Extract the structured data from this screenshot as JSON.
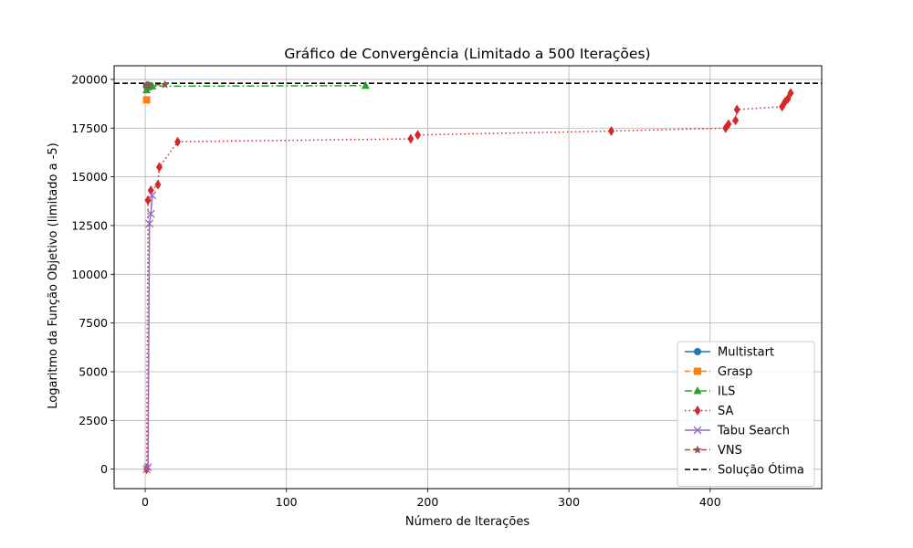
{
  "chart_data": {
    "type": "line",
    "title": "Gráfico de Convergência (Limitado a 500 Iterações)",
    "xlabel": "Número de Iterações",
    "ylabel": "Logaritmo da Função Objetivo (limitado a -5)",
    "xlim": [
      -22,
      479
    ],
    "ylim": [
      -1000,
      20700
    ],
    "xticks": [
      0,
      100,
      200,
      300,
      400
    ],
    "yticks": [
      0,
      2500,
      5000,
      7500,
      10000,
      12500,
      15000,
      17500,
      20000
    ],
    "grid": true,
    "legend_position": "lower-right",
    "series": [
      {
        "name": "Multistart",
        "color": "#1f77b4",
        "linestyle": "solid",
        "marker": "circle",
        "x": [
          1,
          2
        ],
        "y": [
          19650,
          19700
        ]
      },
      {
        "name": "Grasp",
        "color": "#ff7f0e",
        "linestyle": "dashed",
        "marker": "square",
        "x": [
          1
        ],
        "y": [
          18950
        ]
      },
      {
        "name": "ILS",
        "color": "#2ca02c",
        "linestyle": "dashdot",
        "marker": "triangle",
        "x": [
          1,
          2,
          5,
          156
        ],
        "y": [
          19450,
          19600,
          19650,
          19680
        ]
      },
      {
        "name": "SA",
        "color": "#d62728",
        "linestyle": "dotted",
        "marker": "diamond",
        "x": [
          1,
          2,
          4,
          9,
          10,
          23,
          188,
          193,
          330,
          411,
          413,
          418,
          419,
          451,
          453,
          455,
          457
        ],
        "y": [
          0,
          13800,
          14300,
          14600,
          15500,
          16800,
          16950,
          17150,
          17350,
          17500,
          17700,
          17900,
          18450,
          18600,
          18850,
          19000,
          19300
        ]
      },
      {
        "name": "Tabu Search",
        "color": "#9467bd",
        "linestyle": "solid",
        "marker": "x",
        "x": [
          1,
          2,
          3,
          4,
          5
        ],
        "y": [
          0,
          100,
          12600,
          13100,
          14050
        ]
      },
      {
        "name": "VNS",
        "color": "#8c564b",
        "linestyle": "dashed",
        "marker": "star",
        "x": [
          1,
          2,
          14
        ],
        "y": [
          19700,
          19720,
          19730
        ]
      }
    ],
    "reference_line": {
      "name": "Solução Ótima",
      "y": 19800,
      "color": "#000000",
      "linestyle": "dashed"
    }
  }
}
